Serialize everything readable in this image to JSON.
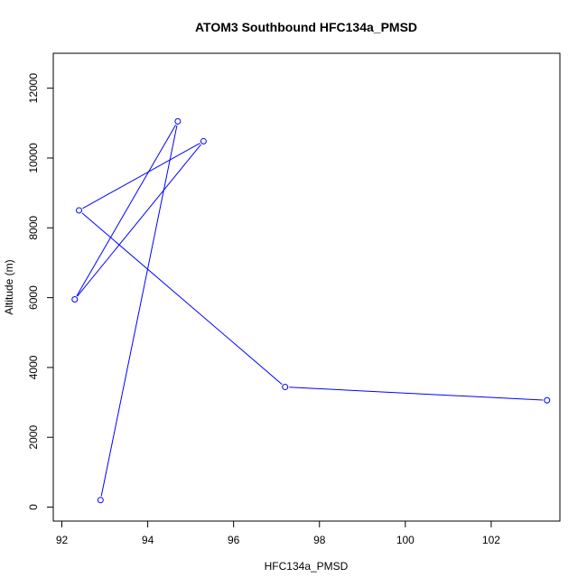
{
  "chart_data": {
    "type": "line",
    "title": "ATOM3 Southbound HFC134a_PMSD",
    "xlabel": "HFC134a_PMSD",
    "ylabel": "Altitude (m)",
    "xlim": [
      91.8,
      103.6
    ],
    "ylim": [
      -400,
      13000
    ],
    "xticks": [
      92,
      94,
      96,
      98,
      100,
      102
    ],
    "yticks": [
      0,
      2000,
      4000,
      6000,
      8000,
      10000,
      12000
    ],
    "series": [
      {
        "color": "#0000ff",
        "marker": "open-circle",
        "points": [
          {
            "x": 92.9,
            "y": 200
          },
          {
            "x": 94.7,
            "y": 11050
          },
          {
            "x": 92.3,
            "y": 5950
          },
          {
            "x": 95.3,
            "y": 10480
          },
          {
            "x": 92.4,
            "y": 8500
          },
          {
            "x": 97.2,
            "y": 3440
          },
          {
            "x": 103.3,
            "y": 3060
          }
        ]
      }
    ],
    "grid": false,
    "legend": "none"
  }
}
